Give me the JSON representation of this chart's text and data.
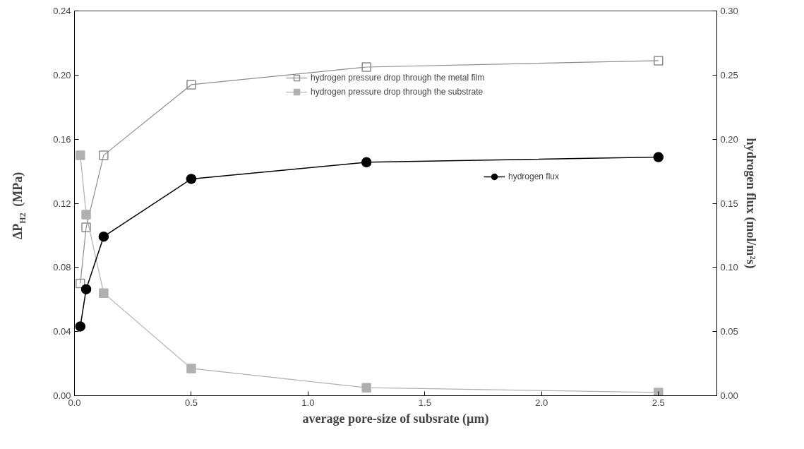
{
  "chart_data": {
    "type": "line",
    "xlabel": "average pore-size of subsrate (µm)",
    "ylabel": "ΔP$_{H2}$ (MPa)",
    "y2label": "hydrogen flux (mol/m²s)",
    "xlim": [
      0,
      2.75
    ],
    "ylim": [
      0,
      0.24
    ],
    "y2lim": [
      0,
      0.3
    ],
    "xticks": [
      {
        "value": 0,
        "label": "0.0"
      },
      {
        "value": 0.5,
        "label": "0.5"
      },
      {
        "value": 1.0,
        "label": "1.0"
      },
      {
        "value": 1.5,
        "label": "1.5"
      },
      {
        "value": 2.0,
        "label": "2.0"
      },
      {
        "value": 2.5,
        "label": "2.5"
      }
    ],
    "yticks": [
      {
        "value": 0,
        "label": "0.00"
      },
      {
        "value": 0.04,
        "label": "0.04"
      },
      {
        "value": 0.08,
        "label": "0.08"
      },
      {
        "value": 0.12,
        "label": "0.12"
      },
      {
        "value": 0.16,
        "label": "0.16"
      },
      {
        "value": 0.2,
        "label": "0.20"
      },
      {
        "value": 0.24,
        "label": "0.24"
      }
    ],
    "y2ticks": [
      {
        "value": 0,
        "label": "0.00"
      },
      {
        "value": 0.05,
        "label": "0.05"
      },
      {
        "value": 0.1,
        "label": "0.10"
      },
      {
        "value": 0.15,
        "label": "0.15"
      },
      {
        "value": 0.2,
        "label": "0.20"
      },
      {
        "value": 0.25,
        "label": "0.25"
      },
      {
        "value": 0.3,
        "label": "0.30"
      }
    ],
    "x": [
      0.025,
      0.05,
      0.125,
      0.5,
      1.25,
      2.5
    ],
    "grid": false,
    "legend": "top",
    "series": [
      {
        "name": "hydrogen pressure drop through the metal film",
        "color": "#8c8c8c",
        "marker": "square",
        "values": [
          0.07,
          0.105,
          0.15,
          0.194,
          0.205,
          0.209
        ]
      },
      {
        "name": "hydrogen pressure drop through the substrate",
        "color": "#b0b0b0",
        "marker": "square",
        "values": [
          0.15,
          0.113,
          0.064,
          0.017,
          0.005,
          0.002
        ]
      },
      {
        "name": "hydrogen flux",
        "color": "#000000",
        "marker": "circle",
        "axis": "y2",
        "values": [
          0.054,
          0.083,
          0.124,
          0.169,
          0.182,
          0.186
        ]
      }
    ]
  }
}
